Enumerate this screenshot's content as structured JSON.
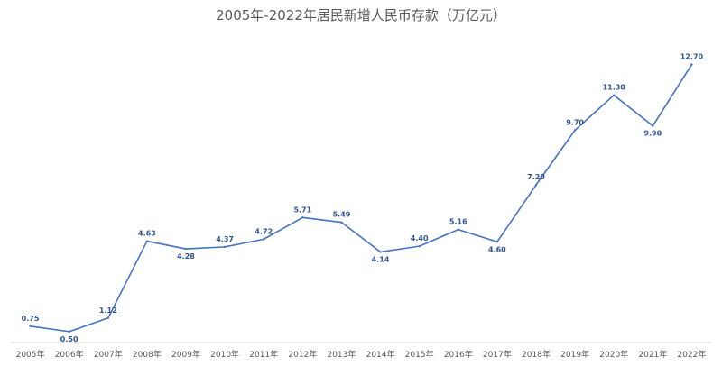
{
  "chart_data": {
    "type": "line",
    "title": "2005年-2022年居民新增人民币存款（万亿元）",
    "xlabel": "",
    "ylabel": "",
    "categories": [
      "2005年",
      "2006年",
      "2007年",
      "2008年",
      "2009年",
      "2010年",
      "2011年",
      "2012年",
      "2013年",
      "2014年",
      "2015年",
      "2016年",
      "2017年",
      "2018年",
      "2019年",
      "2020年",
      "2021年",
      "2022年"
    ],
    "values": [
      0.75,
      0.5,
      1.12,
      4.63,
      4.28,
      4.37,
      4.72,
      5.71,
      5.49,
      4.14,
      4.4,
      5.16,
      4.6,
      7.2,
      9.7,
      11.3,
      9.9,
      12.7
    ],
    "data_labels": [
      "0.75",
      "0.50",
      "1.12",
      "4.63",
      "4.28",
      "4.37",
      "4.72",
      "5.71",
      "5.49",
      "4.14",
      "4.40",
      "5.16",
      "4.60",
      "7.20",
      "9.70",
      "11.30",
      "9.90",
      "12.70"
    ],
    "ylim": [
      0,
      14
    ],
    "grid": false,
    "legend": "none",
    "colors": {
      "line": "#4472c4",
      "label": "#2f5597",
      "axis": "#d9d9d9",
      "text": "#595959"
    }
  }
}
